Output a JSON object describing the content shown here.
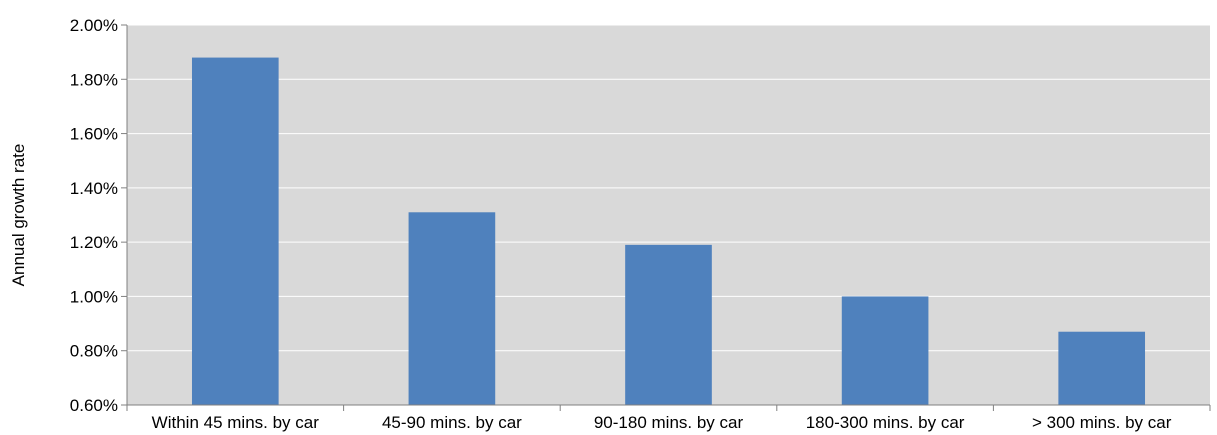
{
  "chart_data": {
    "type": "bar",
    "title": "",
    "xlabel": "",
    "ylabel": "Annual growth rate",
    "categories": [
      "Within 45 mins. by car",
      "45-90 mins. by car",
      "90-180 mins. by car",
      "180-300 mins. by car",
      "> 300 mins. by car"
    ],
    "values": [
      1.88,
      1.31,
      1.19,
      1.0,
      0.87
    ],
    "ylim": [
      0.6,
      2.0
    ],
    "yticks": [
      "0.60%",
      "0.80%",
      "1.00%",
      "1.20%",
      "1.40%",
      "1.60%",
      "1.80%",
      "2.00%"
    ],
    "grid": true,
    "legend": "none",
    "colors": {
      "bar": "#4f81bd",
      "plot_background": "#d9d9d9",
      "gridline": "#ffffff",
      "axis": "#808080"
    }
  }
}
